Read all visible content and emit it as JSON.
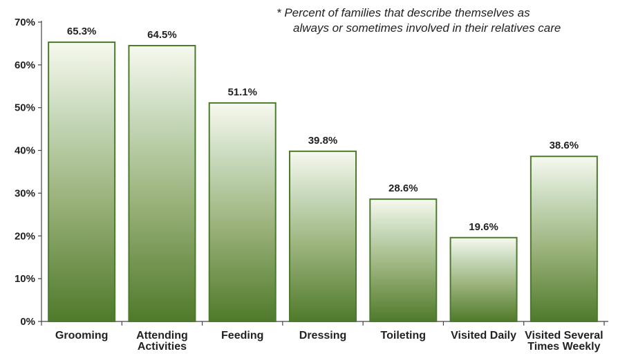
{
  "chart_data": {
    "type": "bar",
    "categories": [
      "Grooming",
      [
        "Attending",
        "Activities"
      ],
      "Feeding",
      "Dressing",
      "Toileting",
      "Visited Daily",
      [
        "Visited Several",
        "Times Weekly"
      ]
    ],
    "values": [
      65.3,
      64.5,
      51.1,
      39.8,
      28.6,
      19.6,
      38.6
    ],
    "data_labels": [
      "65.3%",
      "64.5%",
      "51.1%",
      "39.8%",
      "28.6%",
      "19.6%",
      "38.6%"
    ],
    "yticks": [
      "0%",
      "10%",
      "20%",
      "30%",
      "40%",
      "50%",
      "60%",
      "70%"
    ],
    "ylim": [
      0,
      70
    ],
    "grid": false,
    "colors": {
      "bar_top": "#f6f8ec",
      "bar_bottom": "#4f7a2a",
      "bar_border": "#4a7a2c",
      "axis": "#444444"
    },
    "annotation": {
      "line1": "* Percent of families that describe themselves as",
      "line2": "always or sometimes involved in their relatives care"
    }
  }
}
